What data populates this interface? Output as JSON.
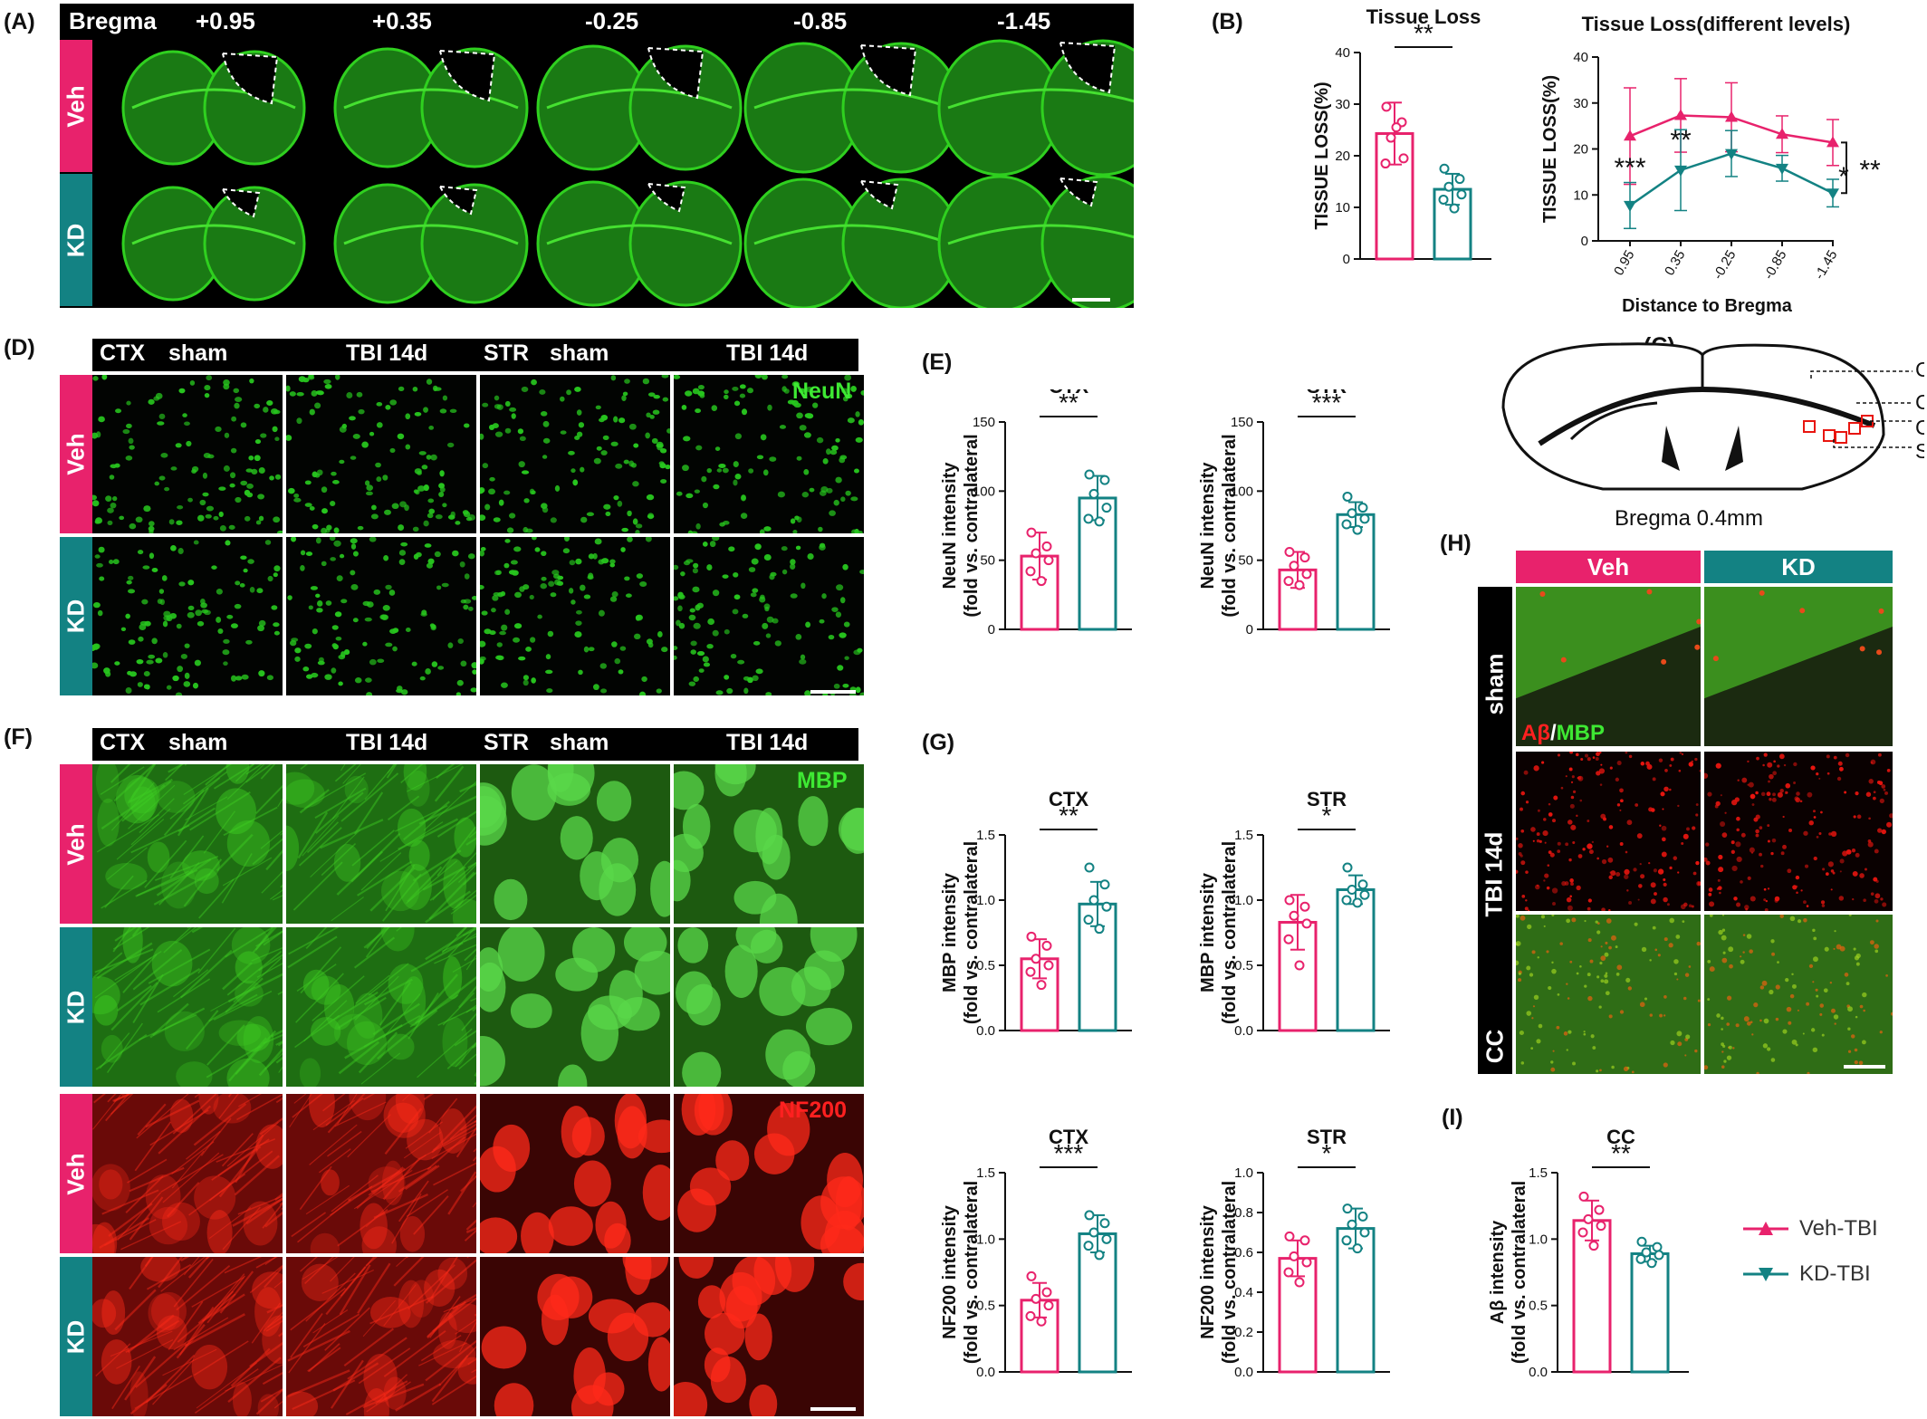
{
  "colors": {
    "veh": "#e8226c",
    "kd": "#138283",
    "fluor_green": "#27c51e",
    "fluor_red": "#e8150f"
  },
  "panels": {
    "A": "(A)",
    "B": "(B)",
    "C": "(C)",
    "D": "(D)",
    "E": "(E)",
    "F": "(F)",
    "G": "(G)",
    "H": "(H)",
    "I": "(I)"
  },
  "panelA": {
    "bregma_label": "Bregma",
    "levels": [
      "+0.95",
      "+0.35",
      "-0.25",
      "-0.85",
      "-1.45"
    ],
    "rows": [
      "Veh",
      "KD"
    ]
  },
  "panelC": {
    "labels": [
      "Contusion",
      "CTX",
      "CC",
      "STR"
    ],
    "caption": "Bregma 0.4mm"
  },
  "panelD": {
    "headers": [
      "CTX",
      "sham",
      "TBI 14d",
      "STR",
      "sham",
      "TBI 14d"
    ],
    "rows": [
      "Veh",
      "KD"
    ],
    "stain": "NeuN"
  },
  "panelF": {
    "headers": [
      "CTX",
      "sham",
      "TBI 14d",
      "STR",
      "sham",
      "TBI 14d"
    ],
    "rows": [
      "Veh",
      "KD",
      "Veh",
      "KD"
    ],
    "stain_green": "MBP",
    "stain_red": "NF200"
  },
  "panelH": {
    "cols": [
      "Veh",
      "KD"
    ],
    "rows": [
      "sham",
      "TBI 14d",
      "CC"
    ],
    "stain_red": "Aβ",
    "stain_sep": "/",
    "stain_green": "MBP"
  },
  "legend": {
    "veh": "Veh-TBI",
    "kd": "KD-TBI"
  },
  "chart_data": [
    {
      "id": "B1",
      "type": "bar",
      "title": "Tissue Loss",
      "ylabel": "TISSUE LOSS(%)",
      "ylim": [
        0,
        40
      ],
      "yticks": [
        0,
        10,
        20,
        30,
        40
      ],
      "categories": [
        "Veh-TBI",
        "KD-TBI"
      ],
      "values": [
        24.3,
        13.5
      ],
      "errors": [
        6.0,
        3.0
      ],
      "points": [
        [
          29.5,
          26.5,
          23.5,
          19.5,
          18.5,
          25.5
        ],
        [
          17.5,
          15.5,
          14.0,
          12.5,
          11.5,
          9.8
        ]
      ],
      "significance": "**"
    },
    {
      "id": "B2",
      "type": "line",
      "title": "Tissue Loss(different levels)",
      "ylabel": "TISSUE LOSS(%)",
      "xlabel": "Distance to Bregma",
      "ylim": [
        0,
        40
      ],
      "yticks": [
        0,
        10,
        20,
        30,
        40
      ],
      "categories": [
        "0.95",
        "0.35",
        "-0.25",
        "-0.85",
        "-1.45"
      ],
      "series": [
        {
          "name": "Veh-TBI",
          "values": [
            22.8,
            27.3,
            26.9,
            23.2,
            21.4
          ],
          "errors": [
            10.5,
            8.0,
            7.5,
            4.0,
            5.0
          ]
        },
        {
          "name": "KD-TBI",
          "values": [
            7.7,
            15.4,
            19.0,
            15.8,
            10.4
          ],
          "errors": [
            5.0,
            8.8,
            5.0,
            2.8,
            3.0
          ]
        }
      ],
      "point_annotations": [
        "***",
        "**",
        "",
        "",
        "*"
      ],
      "overall_significance": "**"
    },
    {
      "id": "E1",
      "type": "bar",
      "title": "CTX",
      "ylabel": [
        "NeuN intensity",
        "(fold vs. contralateral"
      ],
      "ylim": [
        0,
        150
      ],
      "yticks": [
        0,
        50,
        100,
        150
      ],
      "categories": [
        "Veh-TBI",
        "KD-TBI"
      ],
      "values": [
        53,
        95
      ],
      "errors": [
        17,
        16
      ],
      "points": [
        [
          70,
          60,
          55,
          50,
          42,
          35
        ],
        [
          112,
          108,
          98,
          88,
          80,
          78
        ]
      ],
      "significance": "**"
    },
    {
      "id": "E2",
      "type": "bar",
      "title": "STR",
      "ylabel": [
        "NeuN intensity",
        "(fold vs. contralateral"
      ],
      "ylim": [
        0,
        150
      ],
      "yticks": [
        0,
        50,
        100,
        150
      ],
      "categories": [
        "Veh-TBI",
        "KD-TBI"
      ],
      "values": [
        43,
        83
      ],
      "errors": [
        13,
        9
      ],
      "points": [
        [
          56,
          52,
          46,
          40,
          35,
          32
        ],
        [
          96,
          88,
          84,
          80,
          76,
          72
        ]
      ],
      "significance": "***"
    },
    {
      "id": "G1",
      "type": "bar",
      "title": "CTX",
      "ylabel": [
        "MBP intensity",
        "(fold vs. contralateral"
      ],
      "ylim": [
        0,
        1.5
      ],
      "yticks": [
        0.0,
        0.5,
        1.0,
        1.5
      ],
      "categories": [
        "Veh-TBI",
        "KD-TBI"
      ],
      "values": [
        0.55,
        0.97
      ],
      "errors": [
        0.15,
        0.17
      ],
      "points": [
        [
          0.72,
          0.65,
          0.55,
          0.5,
          0.45,
          0.35
        ],
        [
          1.25,
          1.12,
          1.0,
          0.95,
          0.85,
          0.78
        ]
      ],
      "significance": "**"
    },
    {
      "id": "G2",
      "type": "bar",
      "title": "STR",
      "ylabel": [
        "MBP intensity",
        "(fold vs. contralateral"
      ],
      "ylim": [
        0,
        1.5
      ],
      "yticks": [
        0.0,
        0.5,
        1.0,
        1.5
      ],
      "categories": [
        "Veh-TBI",
        "KD-TBI"
      ],
      "values": [
        0.83,
        1.08
      ],
      "errors": [
        0.21,
        0.11
      ],
      "points": [
        [
          1.0,
          0.95,
          0.88,
          0.82,
          0.7,
          0.5
        ],
        [
          1.25,
          1.12,
          1.08,
          1.04,
          1.0,
          0.98
        ]
      ],
      "significance": "*"
    },
    {
      "id": "G3",
      "type": "bar",
      "title": "CTX",
      "ylabel": [
        "NF200 intensity",
        "(fold vs. contralateral"
      ],
      "ylim": [
        0,
        1.5
      ],
      "yticks": [
        0.0,
        0.5,
        1.0,
        1.5
      ],
      "categories": [
        "Veh-TBI",
        "KD-TBI"
      ],
      "values": [
        0.54,
        1.04
      ],
      "errors": [
        0.13,
        0.14
      ],
      "points": [
        [
          0.72,
          0.6,
          0.55,
          0.5,
          0.42,
          0.38
        ],
        [
          1.18,
          1.12,
          1.05,
          1.0,
          0.95,
          0.88
        ]
      ],
      "significance": "***"
    },
    {
      "id": "G4",
      "type": "bar",
      "title": "STR",
      "ylabel": [
        "NF200 intensity",
        "(fold vs. contralateral"
      ],
      "ylim": [
        0,
        1.0
      ],
      "yticks": [
        0.0,
        0.2,
        0.4,
        0.6,
        0.8,
        1.0
      ],
      "categories": [
        "Veh-TBI",
        "KD-TBI"
      ],
      "values": [
        0.57,
        0.72
      ],
      "errors": [
        0.09,
        0.1
      ],
      "points": [
        [
          0.68,
          0.66,
          0.58,
          0.55,
          0.5,
          0.45
        ],
        [
          0.82,
          0.78,
          0.74,
          0.7,
          0.66,
          0.62
        ]
      ],
      "significance": "*"
    },
    {
      "id": "I",
      "type": "bar",
      "title": "CC",
      "ylabel": [
        "Aβ intensity",
        "(fold vs. contralateral"
      ],
      "ylim": [
        0,
        1.5
      ],
      "yticks": [
        0.0,
        0.5,
        1.0,
        1.5
      ],
      "categories": [
        "Veh-TBI",
        "KD-TBI"
      ],
      "values": [
        1.14,
        0.89
      ],
      "errors": [
        0.15,
        0.06
      ],
      "points": [
        [
          1.32,
          1.22,
          1.15,
          1.1,
          1.05,
          0.95
        ],
        [
          0.98,
          0.94,
          0.9,
          0.88,
          0.85,
          0.82
        ]
      ],
      "significance": "**"
    }
  ]
}
